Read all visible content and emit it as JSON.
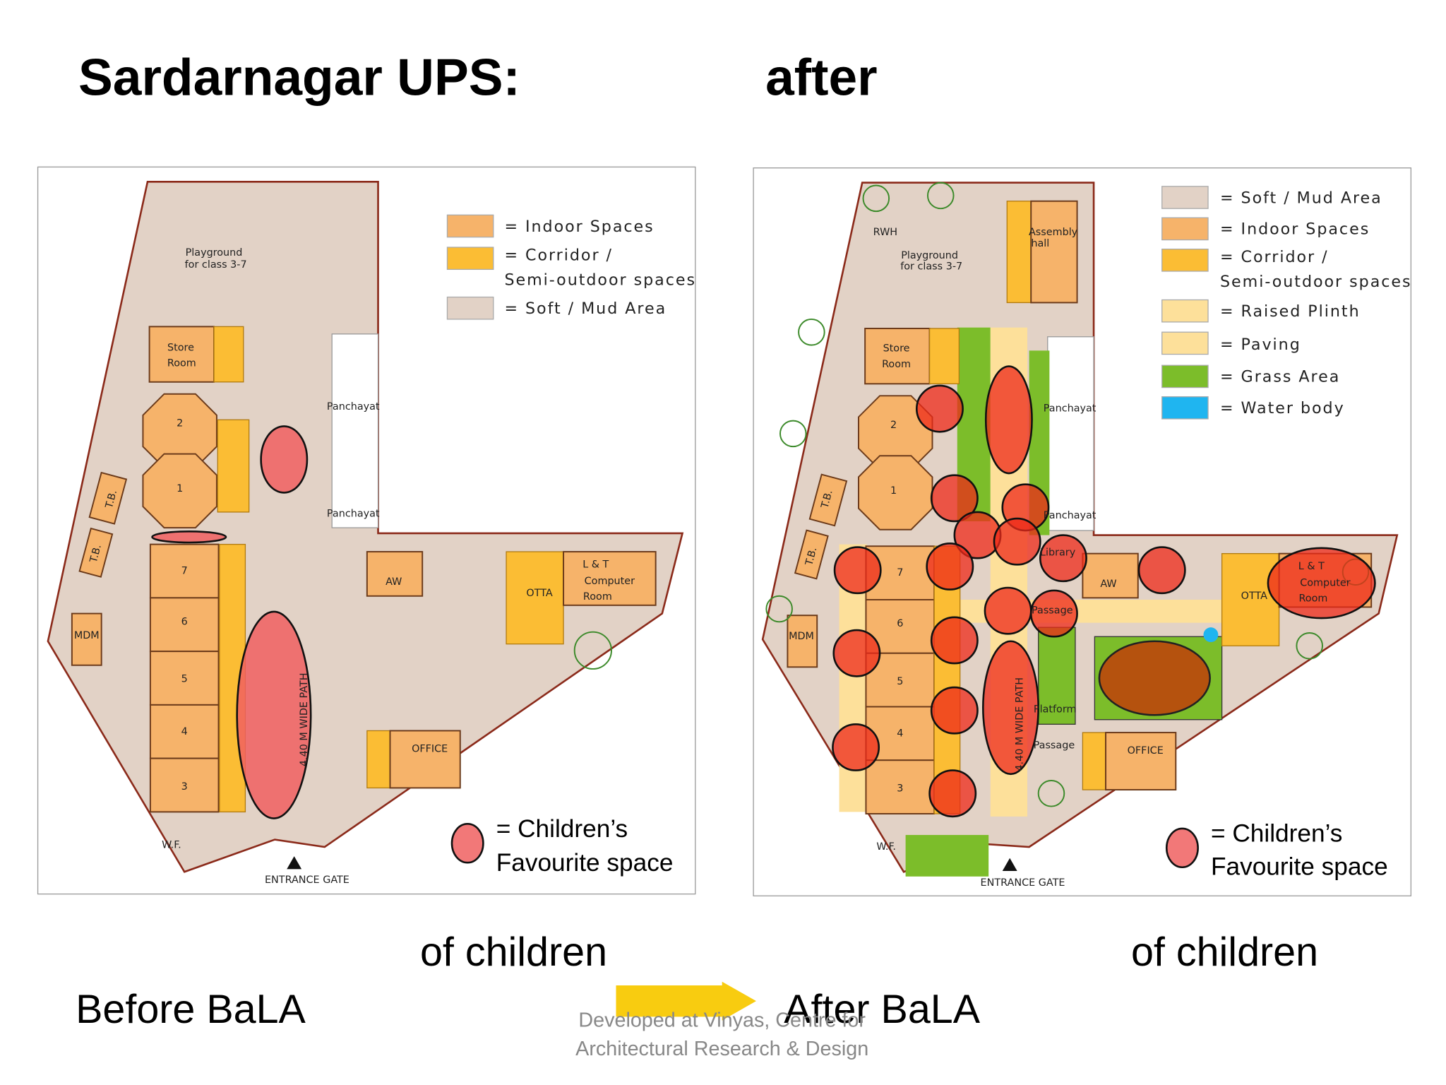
{
  "title": {
    "left": "Sardarnagar UPS:",
    "right": "after"
  },
  "before_plan": {
    "labels": [
      "Playground",
      "for class 3-7",
      "Store",
      "Room",
      "2",
      "1",
      "7",
      "6",
      "5",
      "4",
      "3",
      "T.B.",
      "T.B.",
      "MDM",
      "Panchayat",
      "Panchayat",
      "AW",
      "OTTA",
      "L & T",
      "Computer",
      "Room",
      "OFFICE",
      "4.40 M WIDE PATH",
      "W.F.",
      "ENTRANCE GATE"
    ],
    "legend": [
      "= Indoor Spaces",
      "= Corridor /",
      "Semi-outdoor spaces",
      "= Soft / Mud Area"
    ],
    "favourite_legend": [
      "= Children’s",
      "Favourite space"
    ]
  },
  "after_plan": {
    "labels": [
      "RWH",
      "Assembly",
      "hall",
      "Playground",
      "for class 3-7",
      "Store",
      "Room",
      "2",
      "1",
      "7",
      "6",
      "5",
      "4",
      "3",
      "T.B.",
      "T.B.",
      "MDM",
      "Panchayat",
      "Panchayat",
      "AW",
      "OTTA",
      "L & T",
      "Computer",
      "Room",
      "OFFICE",
      "Library",
      "Passage",
      "Platform",
      "Passage",
      "4.40 M WIDE PATH",
      "W.F.",
      "ENTRANCE GATE"
    ],
    "legend": [
      "= Soft / Mud Area",
      "= Indoor Spaces",
      "= Corridor /",
      "Semi-outdoor spaces",
      "= Raised Plinth",
      "= Paving",
      "= Grass Area",
      "= Water body"
    ],
    "favourite_legend": [
      "= Children’s",
      "Favourite space"
    ]
  },
  "footer": {
    "of_children_left": "of children",
    "of_children_right": "of children",
    "before": "Before BaLA",
    "after": "After BaLA",
    "credit": [
      "Developed at Vinyas, Centre for",
      "Architectural Research & Design"
    ]
  }
}
